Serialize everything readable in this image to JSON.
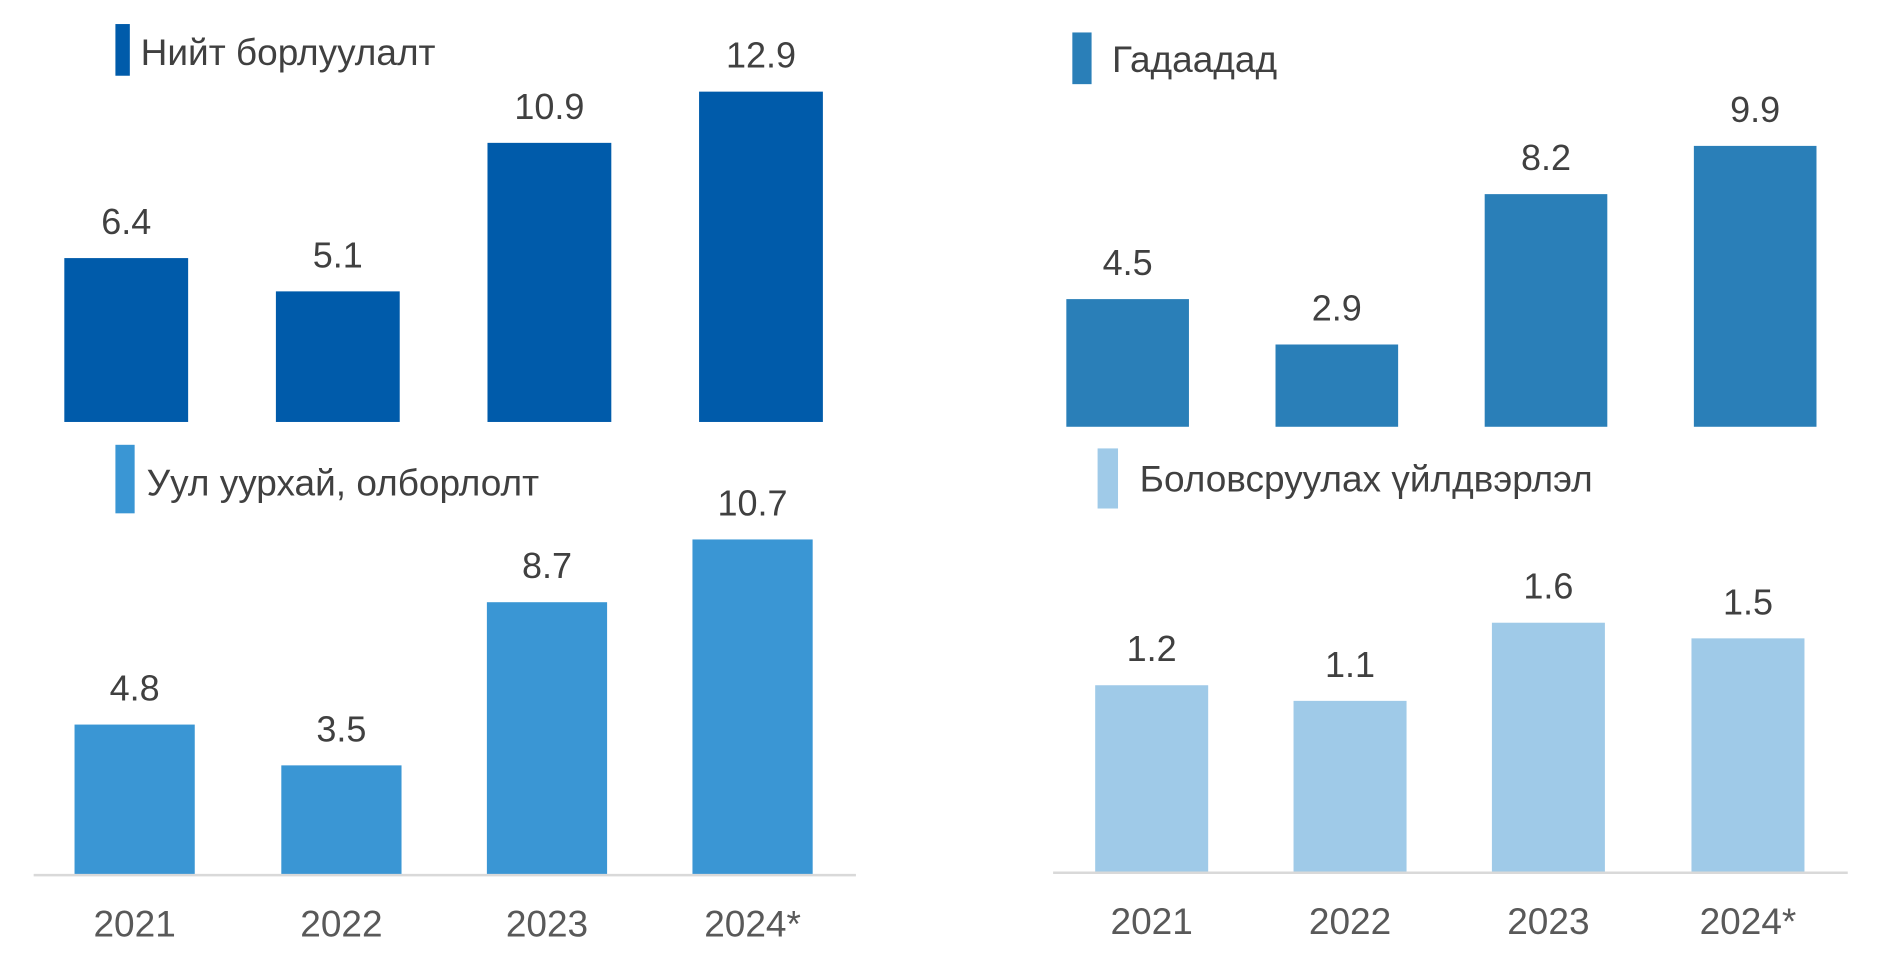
{
  "chart_data": [
    {
      "type": "bar",
      "title": "Нийт борлуулалт",
      "color": "#005BAA",
      "categories": [
        "2021",
        "2022",
        "2023",
        "2024*"
      ],
      "values": [
        6.4,
        5.1,
        10.9,
        12.9
      ]
    },
    {
      "type": "bar",
      "title": "Гадаадад",
      "color": "#2A7FB8",
      "categories": [
        "2021",
        "2022",
        "2023",
        "2024*"
      ],
      "values": [
        4.5,
        2.9,
        8.2,
        9.9
      ]
    },
    {
      "type": "bar",
      "title": "Уул уурхай, олборлолт",
      "color": "#3A96D4",
      "categories": [
        "2021",
        "2022",
        "2023",
        "2024*"
      ],
      "values": [
        4.8,
        3.5,
        8.7,
        10.7
      ]
    },
    {
      "type": "bar",
      "title": "Боловсруулах үйлдвэрлэл",
      "color": "#9FCAE8",
      "categories": [
        "2021",
        "2022",
        "2023",
        "2024*"
      ],
      "values": [
        1.2,
        1.1,
        1.6,
        1.5
      ]
    }
  ]
}
